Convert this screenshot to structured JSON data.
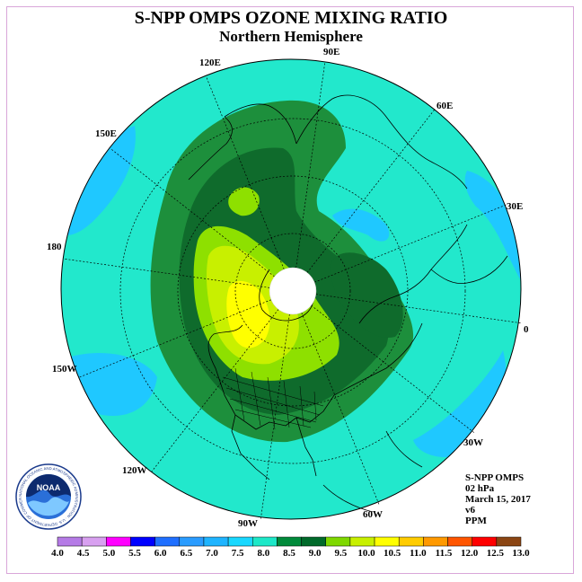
{
  "title": "S-NPP OMPS OZONE MIXING RATIO",
  "subtitle": "Northern Hemisphere",
  "longitude_labels": [
    "90E",
    "60E",
    "30E",
    "0",
    "30W",
    "60W",
    "90W",
    "120W",
    "150W",
    "180",
    "150E",
    "120E"
  ],
  "info": {
    "instrument": "S-NPP OMPS",
    "level": "02 hPa",
    "date": "March 15, 2017",
    "version": "v6",
    "units": "PPM"
  },
  "colorbar": {
    "ticks": [
      "4.0",
      "4.5",
      "5.0",
      "5.5",
      "6.0",
      "6.5",
      "7.0",
      "7.5",
      "8.0",
      "8.5",
      "9.0",
      "9.5",
      "10.0",
      "10.5",
      "11.0",
      "11.5",
      "12.0",
      "12.5",
      "13.0"
    ],
    "colors": [
      "#b57be6",
      "#d8a0f0",
      "#ff00ff",
      "#0000ff",
      "#1f6fff",
      "#2a9cff",
      "#1fb4ff",
      "#19d8ff",
      "#1de8c8",
      "#008a3a",
      "#006a2a",
      "#7fd800",
      "#c8f000",
      "#ffff00",
      "#ffcc00",
      "#ff9900",
      "#ff5500",
      "#ff0000",
      "#8b4513"
    ]
  },
  "map_colors": {
    "background": "#22e8cc",
    "low": "#1fc8ff",
    "green_light": "#1d8f3c",
    "green_dark": "#0f6b2c",
    "lime": "#8ee000",
    "yellow_green": "#c8f000",
    "yellow": "#ffff00",
    "pole": "#ffffff"
  },
  "logo": {
    "text": "NOAA",
    "ring_text": "NATIONAL OCEANIC AND ATMOSPHERIC ADMINISTRATION · U.S. DEPARTMENT OF COMMERCE"
  }
}
